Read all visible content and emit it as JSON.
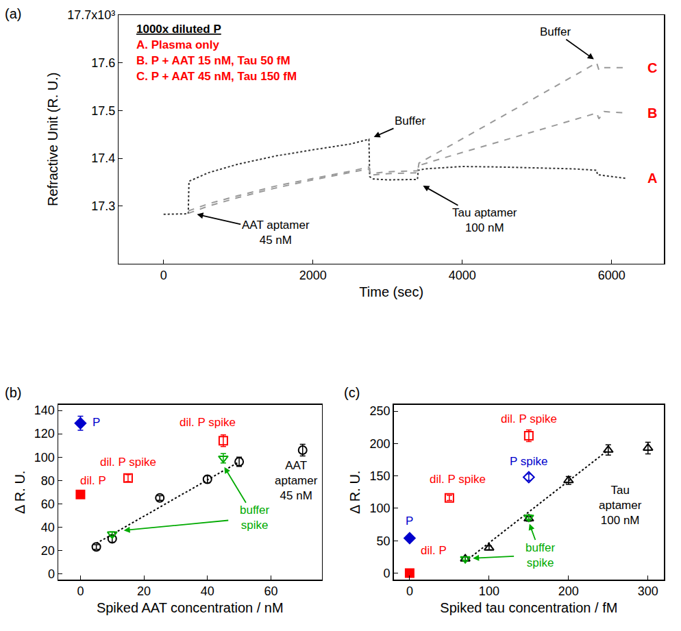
{
  "chart_data": [
    {
      "panel": "(a)",
      "type": "line",
      "x_label": "Time (sec)",
      "y_label": "Refractive Unit (R. U.)",
      "xlim": [
        -600,
        6700
      ],
      "xticks": [
        0,
        2000,
        4000,
        6000
      ],
      "ylim": [
        17180,
        17700
      ],
      "yticks": [
        {
          "value": 17300,
          "label": "17.3"
        },
        {
          "value": 17400,
          "label": "17.4"
        },
        {
          "value": 17500,
          "label": "17.5"
        },
        {
          "value": 17600,
          "label": "17.6"
        },
        {
          "value": 17700,
          "label": "17.7x10³"
        }
      ],
      "grid": false,
      "key_text": {
        "title": "1000x diluted P",
        "title_color": "#000000",
        "color": "#ff0000",
        "items": [
          "A. Plasma only",
          "B. P + AAT 15 nM, Tau 50 fM",
          "C. P + AAT 45 nM, Tau 150 fM"
        ]
      },
      "end_label_color": "#ff0000",
      "series": [
        {
          "name": "A",
          "color": "#333333",
          "line_style": "dot",
          "x": [
            0,
            330,
            340,
            600,
            1000,
            1500,
            2000,
            2500,
            2750,
            2760,
            2800,
            3000,
            3400,
            3410,
            3500,
            4000,
            4500,
            5000,
            5500,
            5800,
            5810,
            5900,
            6200
          ],
          "values": [
            17283,
            17284,
            17352,
            17370,
            17388,
            17405,
            17418,
            17430,
            17440,
            17362,
            17357,
            17355,
            17356,
            17375,
            17378,
            17383,
            17382,
            17380,
            17378,
            17375,
            17366,
            17364,
            17358
          ]
        },
        {
          "name": "B",
          "color": "#999999",
          "line_style": "dash",
          "x": [
            330,
            600,
            1000,
            1500,
            2000,
            2500,
            2750,
            2770,
            3000,
            3400,
            3420,
            3600,
            4000,
            4500,
            5000,
            5500,
            5800,
            5830,
            5900,
            6200
          ],
          "values": [
            17285,
            17300,
            17318,
            17338,
            17355,
            17370,
            17378,
            17368,
            17372,
            17374,
            17385,
            17394,
            17412,
            17435,
            17458,
            17481,
            17495,
            17483,
            17498,
            17495
          ]
        },
        {
          "name": "C",
          "color": "#999999",
          "line_style": "dash",
          "x": [
            330,
            600,
            1000,
            1500,
            2000,
            2500,
            2750,
            2770,
            3000,
            3400,
            3420,
            3600,
            4000,
            4500,
            5000,
            5500,
            5800,
            5830,
            5900,
            6200
          ],
          "values": [
            17290,
            17305,
            17322,
            17342,
            17358,
            17373,
            17382,
            17365,
            17368,
            17370,
            17390,
            17406,
            17441,
            17485,
            17529,
            17573,
            17600,
            17585,
            17590,
            17590
          ]
        }
      ],
      "annotations": [
        {
          "text": "Buffer",
          "x": 3300,
          "y": 17478,
          "color": "#000000",
          "arrows": [
            [
              2790,
              17443
            ]
          ]
        },
        {
          "text": "Buffer",
          "x": 5250,
          "y": 17665,
          "color": "#000000",
          "arrows": [
            [
              5785,
              17605
            ]
          ]
        },
        {
          "text": "AAT aptamer\n45 nM",
          "x": 1500,
          "y": 17245,
          "color": "#000000",
          "arrows": [
            [
              420,
              17284
            ]
          ]
        },
        {
          "text": "Tau aptamer\n100 nM",
          "x": 4300,
          "y": 17270,
          "color": "#000000",
          "arrows": [
            [
              3450,
              17345
            ]
          ]
        }
      ]
    },
    {
      "panel": "(b)",
      "type": "scatter",
      "x_label": "Spiked AAT concentration / nM",
      "y_label": "Δ R. U.",
      "xlim": [
        -7,
        76
      ],
      "xticks": [
        0,
        20,
        40,
        60
      ],
      "ylim": [
        -5,
        145
      ],
      "yticks": [
        0,
        20,
        40,
        60,
        80,
        100,
        120,
        140
      ],
      "grid": false,
      "series": [
        {
          "type": "line",
          "line_style": "dot",
          "color": "#000000",
          "x": [
            5,
            50
          ],
          "values": [
            26,
            96
          ]
        },
        {
          "marker": "diamond",
          "color": "#0000cc",
          "x": [
            0
          ],
          "values": [
            129
          ],
          "errors": [
            6
          ]
        },
        {
          "marker": "square",
          "color": "#ff0000",
          "x": [
            0
          ],
          "values": [
            68
          ],
          "errors": [
            2
          ]
        },
        {
          "marker": "square-open",
          "color": "#ff0000",
          "x": [
            15,
            45
          ],
          "values": [
            82,
            114
          ],
          "errors": [
            3,
            5
          ]
        },
        {
          "marker": "circle-open",
          "color": "#000000",
          "x": [
            5,
            10,
            25,
            40,
            50,
            70
          ],
          "values": [
            23,
            30,
            65,
            81,
            96,
            106
          ],
          "errors": [
            2,
            3,
            2,
            3,
            4,
            5
          ]
        },
        {
          "marker": "triangle-down-open",
          "color": "#00aa00",
          "x": [
            10,
            45
          ],
          "values": [
            34,
            99
          ],
          "errors": [
            2,
            4
          ]
        }
      ],
      "annotations": [
        {
          "text": "P",
          "x": 5,
          "y": 130,
          "color": "#0000cc"
        },
        {
          "text": "dil. P",
          "x": 4,
          "y": 80,
          "color": "#ff0000"
        },
        {
          "text": "dil. P spike",
          "x": 15,
          "y": 96,
          "color": "#ff0000"
        },
        {
          "text": "dil. P spike",
          "x": 40,
          "y": 130,
          "color": "#ff0000"
        },
        {
          "text": "buffer\nspike",
          "x": 55,
          "y": 48,
          "color": "#00aa00",
          "arrows": [
            [
              45,
              93
            ],
            [
              13,
              37
            ]
          ]
        },
        {
          "text": "AAT\naptamer\n45 nM",
          "x": 68,
          "y": 80,
          "color": "#000000"
        }
      ]
    },
    {
      "panel": "(c)",
      "type": "scatter",
      "x_label": "Spiked tau concentration / fM",
      "y_label": "Δ R. U.",
      "xlim": [
        -20,
        320
      ],
      "xticks": [
        0,
        100,
        200,
        300
      ],
      "ylim": [
        -10,
        260
      ],
      "yticks": [
        0,
        50,
        100,
        150,
        200,
        250
      ],
      "grid": false,
      "series": [
        {
          "type": "line",
          "line_style": "dot",
          "color": "#000000",
          "x": [
            70,
            250
          ],
          "values": [
            18,
            190
          ]
        },
        {
          "marker": "diamond",
          "color": "#0000cc",
          "x": [
            0
          ],
          "values": [
            54
          ],
          "errors": [
            2
          ]
        },
        {
          "marker": "square",
          "color": "#ff0000",
          "x": [
            0
          ],
          "values": [
            0
          ],
          "errors": [
            2
          ]
        },
        {
          "marker": "square-open",
          "color": "#ff0000",
          "x": [
            50,
            150
          ],
          "values": [
            116,
            212
          ],
          "errors": [
            4,
            9
          ]
        },
        {
          "marker": "diamond-open",
          "color": "#0000cc",
          "x": [
            150
          ],
          "values": [
            148
          ],
          "errors": [
            5
          ]
        },
        {
          "marker": "triangle-up-open",
          "color": "#000000",
          "x": [
            70,
            100,
            150,
            200,
            250,
            300
          ],
          "values": [
            22,
            39,
            84,
            143,
            190,
            193
          ],
          "errors": [
            3,
            3,
            4,
            6,
            8,
            9
          ]
        },
        {
          "marker": "triangle-down-open",
          "color": "#00aa00",
          "x": [
            70,
            150
          ],
          "values": [
            22,
            86
          ],
          "errors": [
            3,
            4
          ]
        }
      ],
      "annotations": [
        {
          "text": "P",
          "x": 0,
          "y": 80,
          "color": "#0000cc"
        },
        {
          "text": "dil. P",
          "x": 30,
          "y": 35,
          "color": "#ff0000"
        },
        {
          "text": "dil. P spike",
          "x": 60,
          "y": 145,
          "color": "#ff0000"
        },
        {
          "text": "dil. P spike",
          "x": 150,
          "y": 238,
          "color": "#ff0000"
        },
        {
          "text": "P spike",
          "x": 150,
          "y": 172,
          "color": "#0000cc"
        },
        {
          "text": "buffer\nspike",
          "x": 165,
          "y": 28,
          "color": "#00aa00",
          "arrows": [
            [
              150,
              79
            ],
            [
              77,
              23
            ]
          ]
        },
        {
          "text": "Tau\naptamer\n100 nM",
          "x": 265,
          "y": 105,
          "color": "#000000"
        }
      ]
    }
  ]
}
